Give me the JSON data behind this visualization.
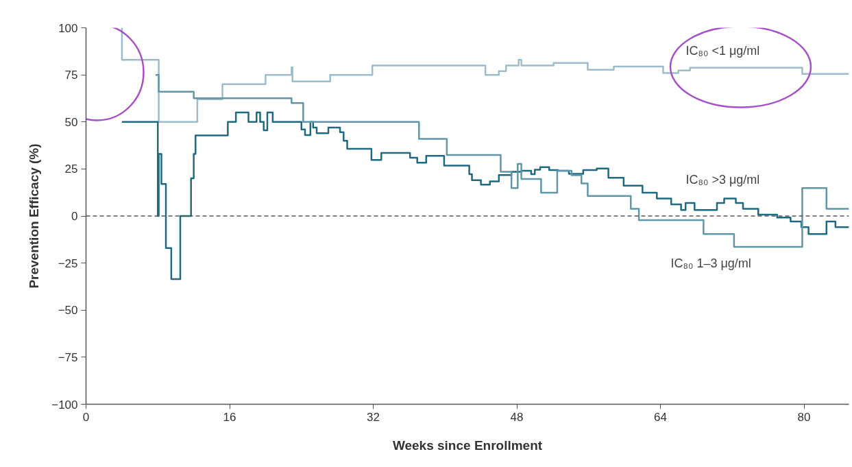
{
  "chart_data": {
    "type": "step",
    "xlabel": "Weeks since Enrollment",
    "ylabel": "Prevention Efficacy (%)",
    "xlim": [
      0,
      85
    ],
    "ylim": [
      -100,
      100
    ],
    "xticks": [
      0,
      16,
      32,
      48,
      64,
      80
    ],
    "yticks": [
      -100,
      -75,
      -50,
      -25,
      0,
      25,
      50,
      75,
      100
    ],
    "grid": false,
    "line_style": "solid",
    "ref_lines": [
      {
        "axis": "y",
        "value": 0,
        "line_style": "dashed",
        "color": "#555555"
      }
    ],
    "series": [
      {
        "name": "IC₈₀ <1 μg/ml",
        "color": "#9cbccb",
        "x": [
          4.0,
          4.0,
          8.1,
          12.4,
          15.2,
          20.0,
          22.9,
          23.0,
          27.2,
          31.9,
          44.5,
          46.0,
          46.8,
          48.2,
          48.5,
          52.1,
          55.9,
          58.8,
          64.3,
          66.0,
          67.3,
          79.8,
          85
        ],
        "values": [
          100,
          83,
          50,
          62,
          70,
          75,
          79,
          71.5,
          75,
          80,
          75,
          77,
          80,
          83,
          80,
          81.3,
          77.7,
          79.4,
          76,
          77.3,
          78.8,
          75.5,
          75.5
        ]
      },
      {
        "name": "IC₈₀ >3 μg/ml",
        "color": "#1f6a80",
        "x": [
          4.0,
          8.0,
          8.1,
          8.4,
          8.9,
          9.5,
          10.5,
          11.7,
          12.0,
          12.2,
          15.8,
          16.7,
          18.1,
          19.0,
          19.4,
          19.8,
          20.2,
          20.8,
          24.0,
          24.4,
          25.0,
          25.3,
          25.7,
          27.0,
          28.3,
          28.7,
          29.1,
          31.8,
          32.9,
          36.1,
          36.9,
          37.9,
          39.9,
          42.7,
          43.0,
          44.0,
          45.0,
          46.0,
          47.4,
          48.5,
          49.6,
          50.0,
          50.6,
          51.6,
          52.6,
          53.8,
          55.4,
          56.9,
          58.2,
          59.9,
          62.0,
          63.6,
          65.2,
          66.3,
          66.8,
          67.8,
          70.3,
          71.1,
          72.4,
          73.2,
          74.9,
          77.0,
          78.5,
          79.7,
          80.5,
          82.5,
          83.5,
          85
        ],
        "values": [
          50,
          0,
          33,
          17,
          -17,
          -33.5,
          0,
          20,
          33,
          42.8,
          50,
          55,
          50,
          55,
          50,
          45.5,
          55,
          50,
          46,
          43,
          50,
          47,
          44,
          47,
          44.5,
          40,
          35.7,
          29.8,
          33.5,
          31,
          28.3,
          32,
          26.8,
          22.2,
          19,
          16.7,
          18.4,
          21.8,
          23.5,
          24,
          22.2,
          24.6,
          26,
          24.4,
          24,
          22.4,
          24.4,
          25.2,
          20.3,
          16.1,
          12.4,
          9.3,
          6.2,
          3.2,
          6.9,
          3.2,
          6.9,
          9.3,
          6.9,
          3.8,
          0.7,
          -0.8,
          -2.9,
          -5.9,
          -9.6,
          -2.9,
          -5.9,
          -5.9
        ]
      },
      {
        "name": "IC₈₀ 1–3 μg/ml",
        "color": "#5f96a8",
        "x": [
          7.75,
          8.1,
          12.0,
          22.9,
          24.2,
          37.1,
          40.2,
          46.2,
          47.4,
          48.1,
          48.5,
          50.7,
          52.5,
          54.1,
          55.2,
          55.9,
          60.7,
          61.6,
          68.8,
          72.2,
          79.8,
          82.5,
          85
        ],
        "values": [
          75,
          66,
          62.6,
          60,
          50,
          41,
          32.4,
          23.5,
          14.8,
          27.7,
          19.7,
          12.4,
          24,
          21.7,
          17.3,
          10.7,
          3.8,
          -2.2,
          -9.6,
          -16.4,
          14.8,
          3.8,
          3.8
        ]
      }
    ]
  }
}
